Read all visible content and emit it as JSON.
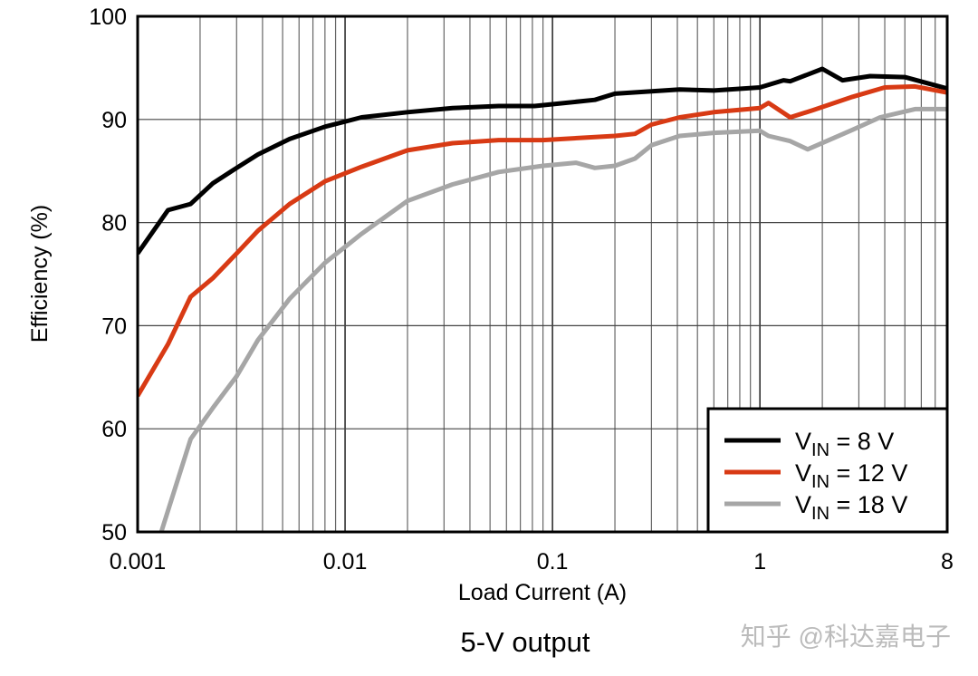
{
  "chart_data": {
    "type": "line",
    "title": "",
    "caption": "5-V output",
    "xlabel": "Load Current (A)",
    "ylabel": "Efficiency (%)",
    "xscale": "log",
    "xlim": [
      0.001,
      8
    ],
    "ylim": [
      50,
      100
    ],
    "xticks": [
      {
        "v": 0.001,
        "label": "0.001"
      },
      {
        "v": 0.01,
        "label": "0.01"
      },
      {
        "v": 0.1,
        "label": "0.1"
      },
      {
        "v": 1,
        "label": "1"
      },
      {
        "v": 8,
        "label": "8"
      }
    ],
    "yticks": [
      {
        "v": 50,
        "label": "50"
      },
      {
        "v": 60,
        "label": "60"
      },
      {
        "v": 70,
        "label": "70"
      },
      {
        "v": 80,
        "label": "80"
      },
      {
        "v": 90,
        "label": "90"
      },
      {
        "v": 100,
        "label": "100"
      }
    ],
    "grid": true,
    "legend_position": "bottom-right",
    "series": [
      {
        "name": "VIN = 8 V",
        "label_main": "V",
        "label_sub": "IN",
        "label_rest": " = 8 V",
        "color": "#000000",
        "x": [
          0.001,
          0.0014,
          0.0018,
          0.0023,
          0.003,
          0.0038,
          0.0054,
          0.008,
          0.012,
          0.02,
          0.033,
          0.055,
          0.082,
          0.16,
          0.2,
          0.41,
          0.6,
          1.0,
          1.3,
          1.4,
          2.0,
          2.5,
          3.4,
          5,
          8
        ],
        "y": [
          77.0,
          81.2,
          81.8,
          83.8,
          85.3,
          86.6,
          88.1,
          89.3,
          90.2,
          90.7,
          91.1,
          91.3,
          91.3,
          91.9,
          92.5,
          92.9,
          92.8,
          93.1,
          93.8,
          93.7,
          94.9,
          93.8,
          94.2,
          94.1,
          93.0
        ]
      },
      {
        "name": "VIN = 12 V",
        "label_main": "V",
        "label_sub": "IN",
        "label_rest": " = 12 V",
        "color": "#d83a14",
        "x": [
          0.001,
          0.0014,
          0.0018,
          0.0023,
          0.003,
          0.0038,
          0.0054,
          0.008,
          0.012,
          0.02,
          0.033,
          0.055,
          0.09,
          0.2,
          0.25,
          0.3,
          0.41,
          0.6,
          1.0,
          1.1,
          1.4,
          1.8,
          2.8,
          4,
          5.6,
          8
        ],
        "y": [
          63.2,
          68.2,
          72.8,
          74.6,
          77.0,
          79.2,
          81.8,
          84.0,
          85.4,
          87.0,
          87.7,
          88.0,
          88.0,
          88.4,
          88.6,
          89.5,
          90.2,
          90.7,
          91.1,
          91.6,
          90.2,
          90.9,
          92.2,
          93.1,
          93.2,
          92.6
        ]
      },
      {
        "name": "VIN = 18 V",
        "label_main": "V",
        "label_sub": "IN",
        "label_rest": " = 18 V",
        "color": "#a6a6a6",
        "x": [
          0.0013,
          0.0018,
          0.0023,
          0.003,
          0.0038,
          0.0054,
          0.008,
          0.012,
          0.02,
          0.033,
          0.055,
          0.09,
          0.13,
          0.16,
          0.2,
          0.25,
          0.3,
          0.41,
          0.6,
          1.0,
          1.1,
          1.4,
          1.7,
          2.8,
          3.8,
          5.6,
          8
        ],
        "y": [
          50.0,
          59.0,
          62.0,
          65.1,
          68.6,
          72.6,
          76.1,
          78.9,
          82.1,
          83.7,
          84.9,
          85.5,
          85.8,
          85.3,
          85.5,
          86.2,
          87.5,
          88.4,
          88.7,
          88.9,
          88.4,
          87.9,
          87.1,
          89.0,
          90.2,
          91.0,
          91.0
        ]
      }
    ]
  },
  "watermark": "知乎 @科达嘉电子"
}
